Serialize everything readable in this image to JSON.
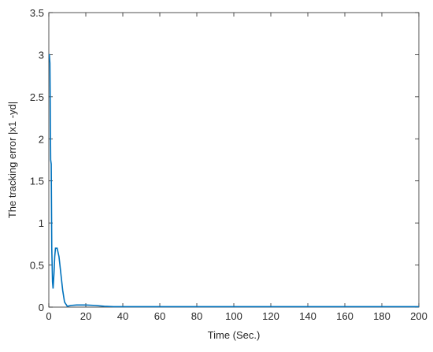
{
  "chart_data": {
    "type": "line",
    "xlabel": "Time (Sec.)",
    "ylabel": "The tracking error |x1 -yd|",
    "x": [
      0,
      0.3,
      0.6,
      1,
      1.3,
      1.6,
      2,
      2.3,
      2.8,
      3.2,
      3.6,
      4.5,
      5.5,
      6.5,
      7.5,
      8.5,
      10,
      12,
      15,
      20,
      25,
      30,
      35,
      40,
      60,
      100,
      150,
      200
    ],
    "series": [
      {
        "color": "#0072bd",
        "values": [
          3.0,
          3.0,
          2.9,
          1.75,
          1.7,
          0.7,
          0.3,
          0.22,
          0.4,
          0.6,
          0.7,
          0.7,
          0.6,
          0.4,
          0.2,
          0.06,
          0.01,
          0.02,
          0.025,
          0.025,
          0.02,
          0.01,
          0.005,
          0.005,
          0.005,
          0.005,
          0.005,
          0.005
        ]
      }
    ],
    "xlim": [
      0,
      200
    ],
    "xticks": [
      0,
      20,
      40,
      60,
      80,
      100,
      120,
      140,
      160,
      180,
      200
    ],
    "ylim": [
      0,
      3.5
    ],
    "yticks": [
      0,
      0.5,
      1,
      1.5,
      2,
      2.5,
      3,
      3.5
    ]
  }
}
